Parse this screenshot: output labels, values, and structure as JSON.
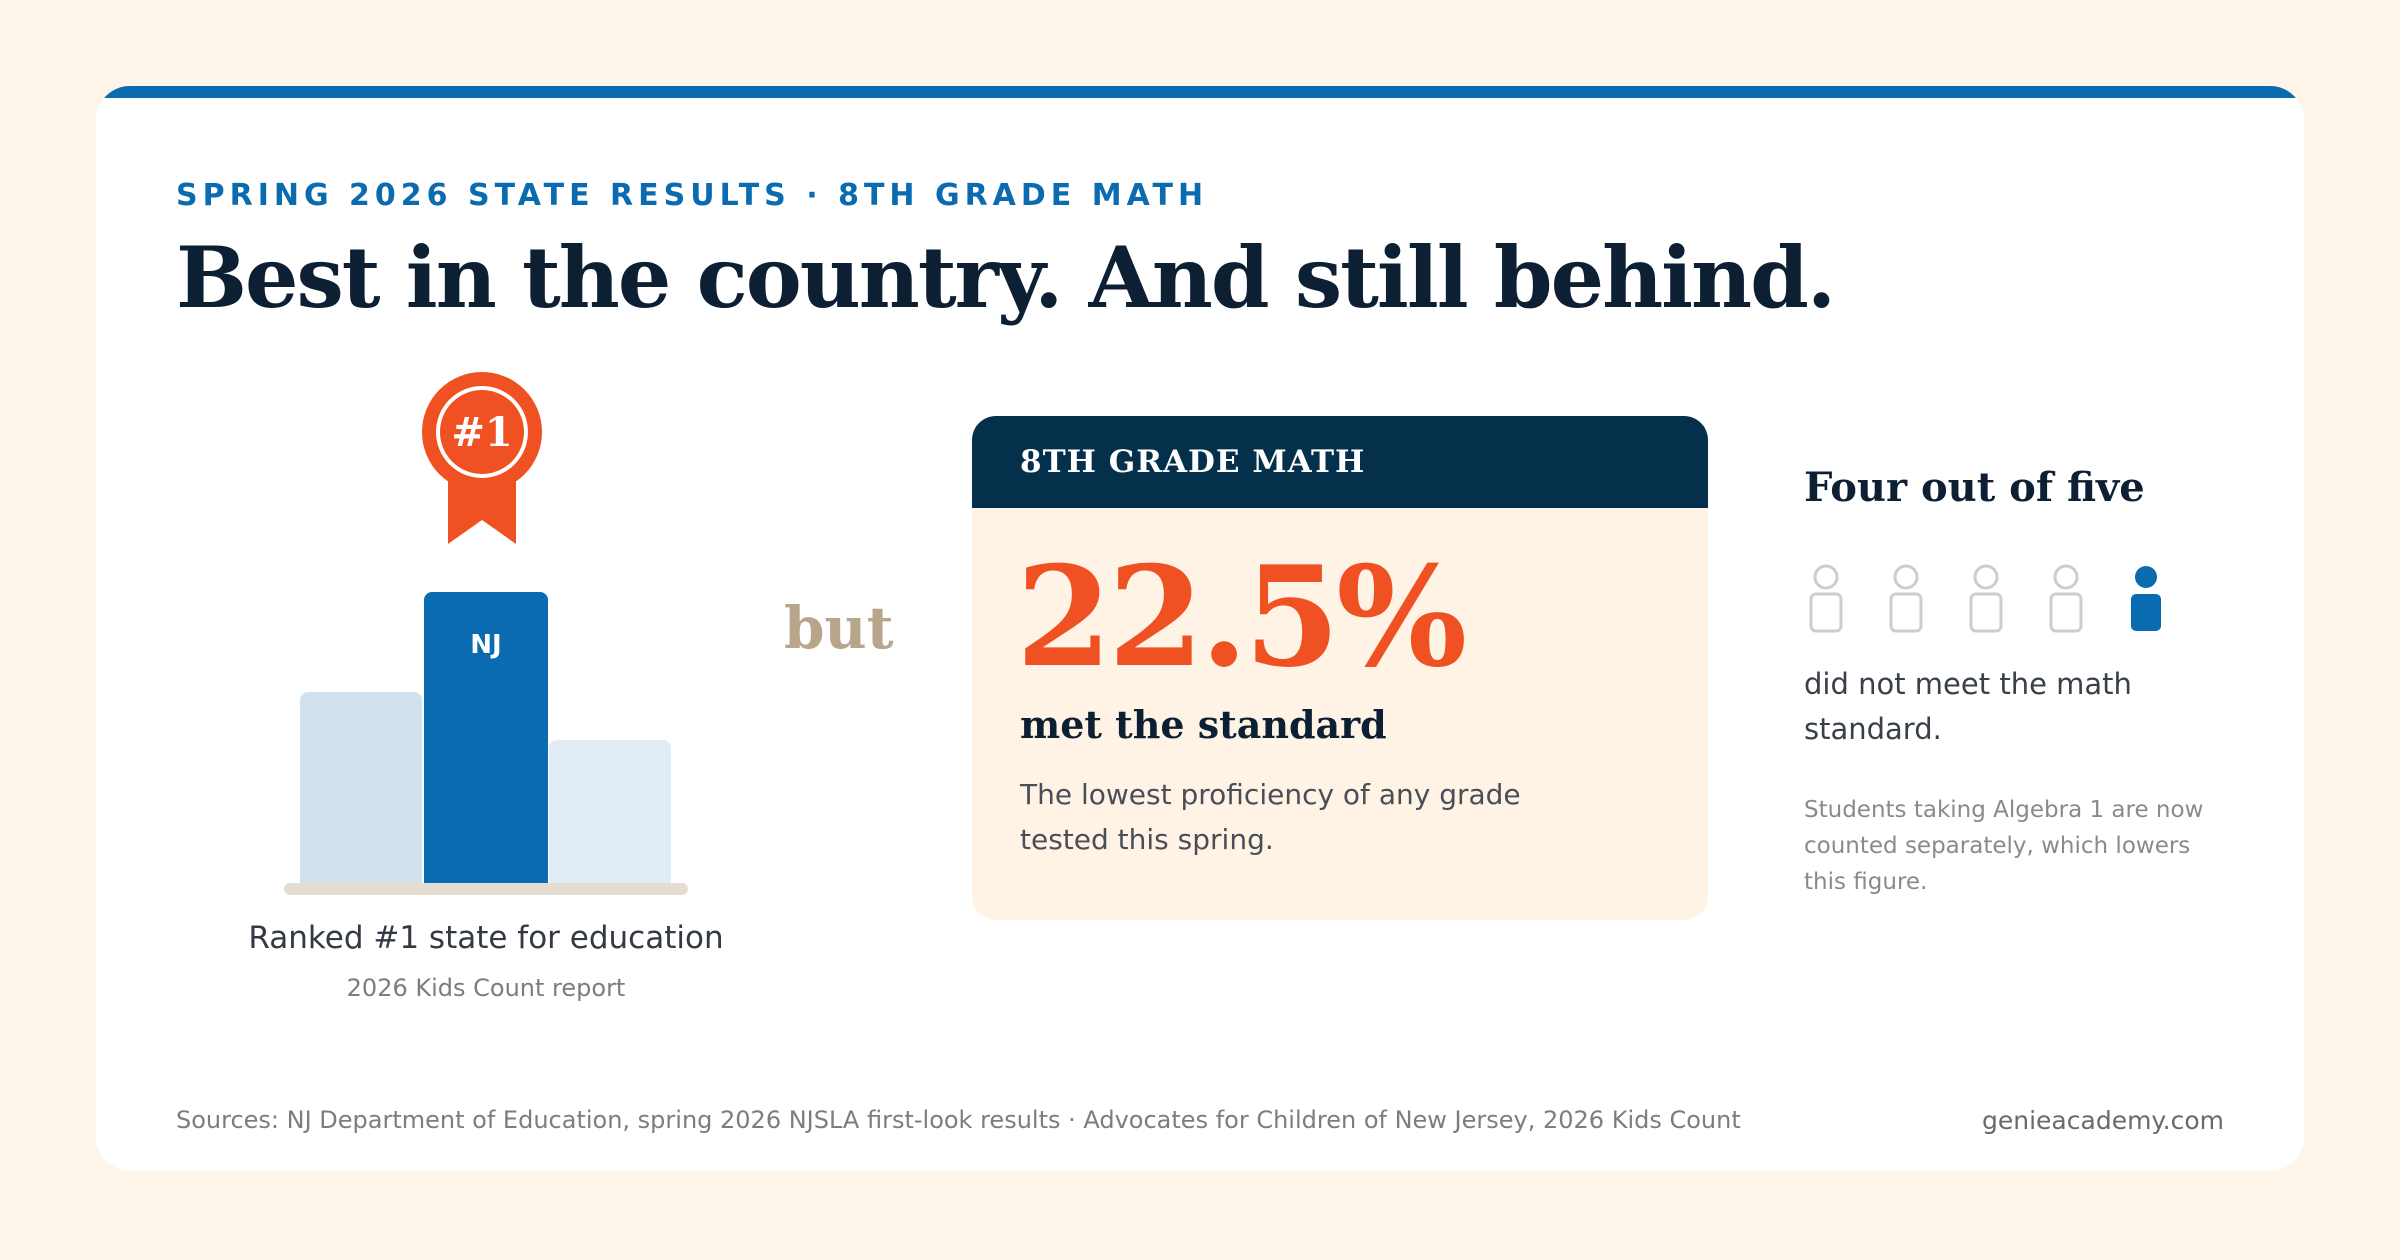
{
  "header": {
    "kicker": "SPRING 2026 STATE RESULTS · 8TH GRADE MATH",
    "headline": "Best in the country. And still behind."
  },
  "ranking": {
    "badge_text": "#1",
    "badge_icon": "award-ribbon-icon",
    "bar_label": "NJ",
    "label": "Ranked #1 state for education",
    "source": "2026 Kids Count report"
  },
  "connector": "but",
  "stat": {
    "header": "8TH GRADE MATH",
    "value": "22.5%",
    "caption": "met the standard",
    "note": "The lowest proficiency of any grade tested this spring."
  },
  "right": {
    "title": "Four out of five",
    "people_total": 5,
    "people_highlighted_index": 4,
    "description": "did not meet the math standard.",
    "footnote": "Students taking Algebra 1 are now counted separately, which lowers this figure."
  },
  "footer": {
    "sources": "Sources: NJ Department of Education, spring 2026 NJSLA first-look results · Advocates for Children of New Jersey, 2026 Kids Count",
    "site": "genieacademy.com"
  },
  "colors": {
    "page_background": "#fdf4ea",
    "accent_blue": "#0b6bb0",
    "accent_orange": "#f05123",
    "navy": "#04304b",
    "muted_person": "#c9ced3"
  }
}
